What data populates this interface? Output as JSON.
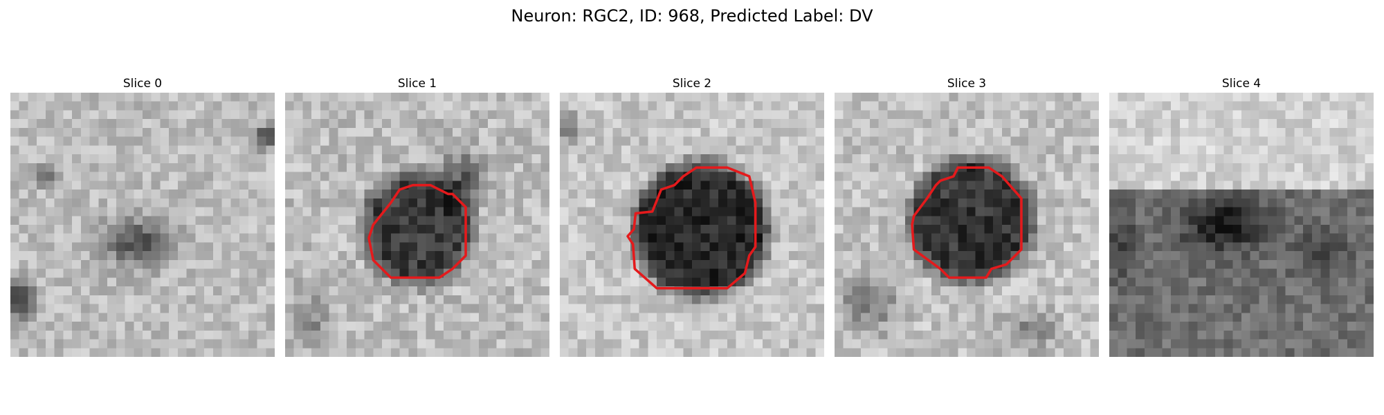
{
  "figure": {
    "title": "Neuron: RGC2, ID: 968, Predicted Label: DV",
    "outline_color": "#e41a1c",
    "colormap": "grayscale"
  },
  "slices": [
    {
      "title": "Slice 0",
      "has_outline": false
    },
    {
      "title": "Slice 1",
      "has_outline": true
    },
    {
      "title": "Slice 2",
      "has_outline": true
    },
    {
      "title": "Slice 3",
      "has_outline": true
    },
    {
      "title": "Slice 4",
      "has_outline": false
    }
  ]
}
